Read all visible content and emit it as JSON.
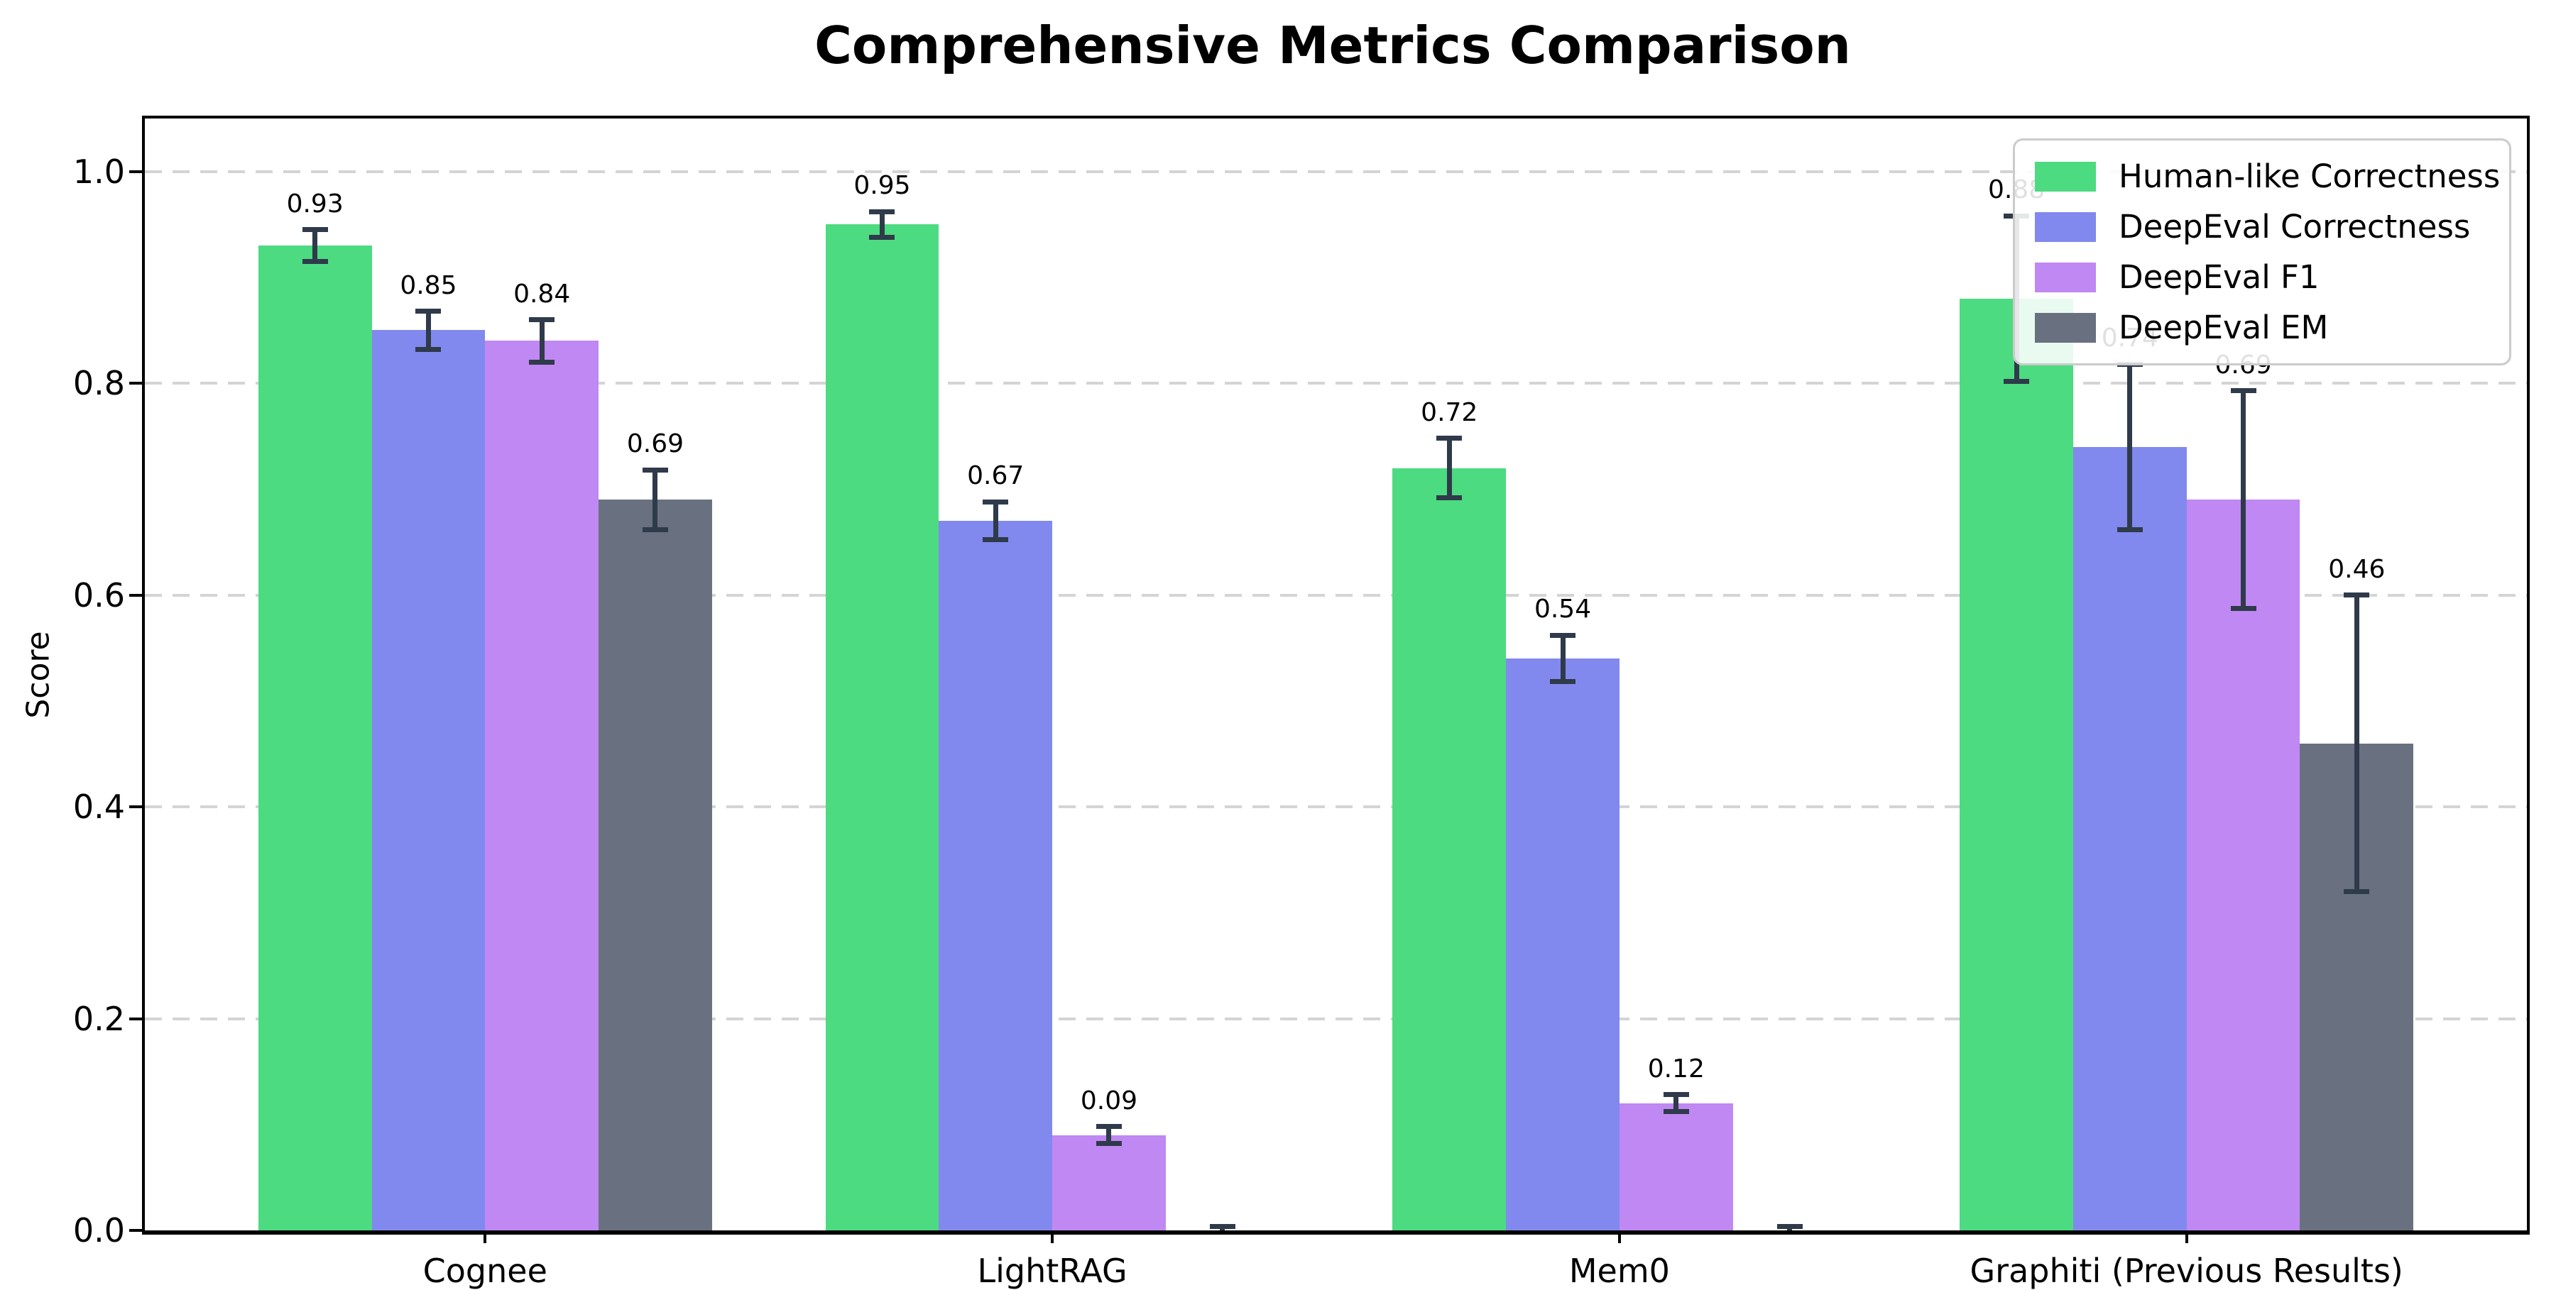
{
  "title": "Comprehensive Metrics Comparison",
  "colors": {
    "human_like": "#4cdb81",
    "deepeval_correctness": "#8189ee",
    "deepeval_f1": "#bf88f2",
    "deepeval_em": "#697180",
    "error_bar": "#2f3a4a",
    "gridline": "#d4d4d4",
    "axis": "#000000",
    "legend_border": "#cbcbcb"
  },
  "chart_data": {
    "type": "bar",
    "title": "Comprehensive Metrics Comparison",
    "categories": [
      "Cognee",
      "LightRAG",
      "Mem0",
      "Graphiti (Previous Results)"
    ],
    "series": [
      {
        "name": "Human-like Correctness",
        "color": "#4cdb81",
        "values": [
          0.93,
          0.95,
          0.72,
          0.88
        ],
        "errors": [
          0.015,
          0.012,
          0.028,
          0.078
        ],
        "labels": [
          "0.93",
          "0.95",
          "0.72",
          "0.88"
        ]
      },
      {
        "name": "DeepEval Correctness",
        "color": "#8189ee",
        "values": [
          0.85,
          0.67,
          0.54,
          0.74
        ],
        "errors": [
          0.018,
          0.018,
          0.022,
          0.078
        ],
        "labels": [
          "0.85",
          "0.67",
          "0.54",
          "0.74"
        ]
      },
      {
        "name": "DeepEval F1",
        "color": "#bf88f2",
        "values": [
          0.84,
          0.09,
          0.12,
          0.69
        ],
        "errors": [
          0.02,
          0.008,
          0.008,
          0.103
        ],
        "labels": [
          "0.84",
          "0.09",
          "0.12",
          "0.69"
        ]
      },
      {
        "name": "DeepEval EM",
        "color": "#697180",
        "values": [
          0.69,
          0.0,
          0.0,
          0.46
        ],
        "errors": [
          0.028,
          0.004,
          0.004,
          0.14
        ],
        "labels": [
          "0.69",
          null,
          null,
          "0.46"
        ]
      }
    ],
    "xlabel": "",
    "ylabel": "Score",
    "yticks": [
      0.0,
      0.2,
      0.4,
      0.6,
      0.8,
      1.0
    ],
    "ytick_labels": [
      "0.0",
      "0.2",
      "0.4",
      "0.6",
      "0.8",
      "1.0"
    ],
    "ylim": [
      0,
      1.05
    ],
    "grid": "horizontal-dashed",
    "legend_position": "upper right"
  }
}
